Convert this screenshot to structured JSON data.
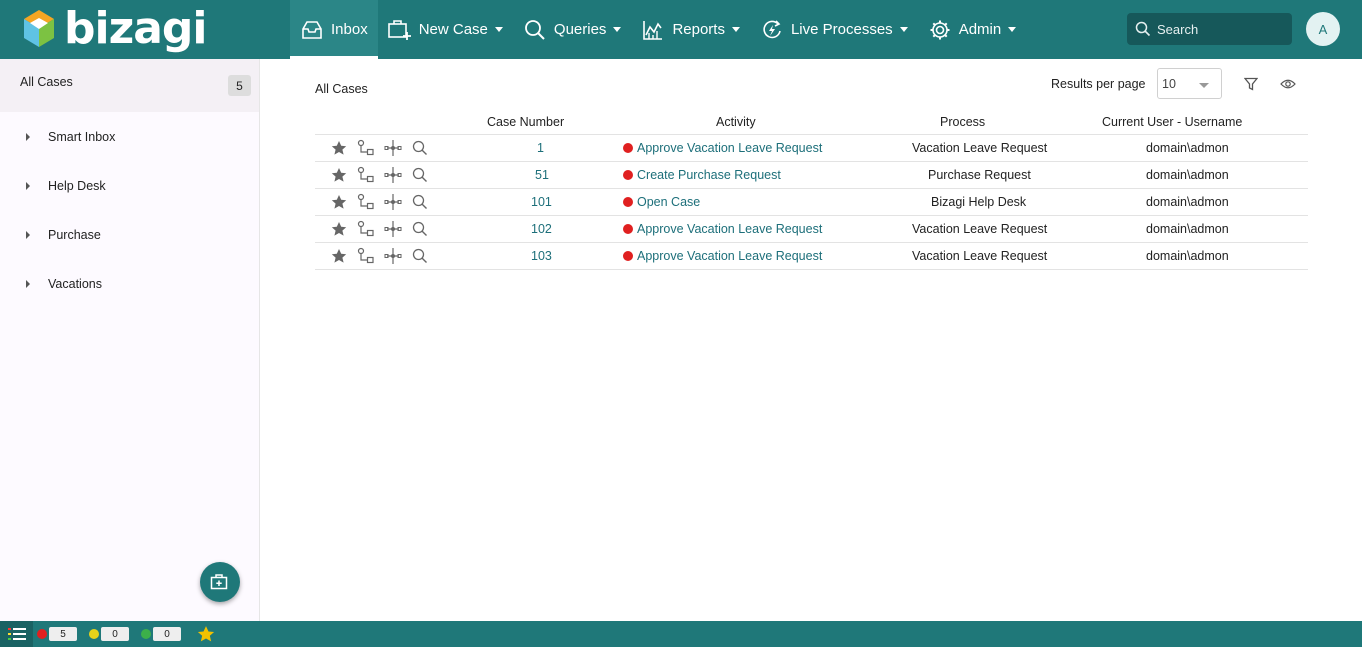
{
  "header": {
    "brand": "bizagi",
    "nav": [
      {
        "label": "Inbox",
        "icon": "inbox-icon",
        "active": true
      },
      {
        "label": "New Case",
        "icon": "new-case-icon",
        "dropdown": true
      },
      {
        "label": "Queries",
        "icon": "queries-icon",
        "dropdown": true
      },
      {
        "label": "Reports",
        "icon": "reports-icon",
        "dropdown": true
      },
      {
        "label": "Live Processes",
        "icon": "live-processes-icon",
        "dropdown": true
      },
      {
        "label": "Admin",
        "icon": "gear-icon",
        "dropdown": true
      }
    ],
    "search_placeholder": "Search",
    "avatar_initial": "A"
  },
  "sidebar": {
    "all_cases_label": "All Cases",
    "all_cases_count": "5",
    "items": [
      {
        "label": "Smart Inbox"
      },
      {
        "label": "Help Desk"
      },
      {
        "label": "Purchase"
      },
      {
        "label": "Vacations"
      }
    ]
  },
  "main": {
    "title": "All Cases",
    "results_per_page_label": "Results per page",
    "results_per_page_value": "10",
    "columns": [
      "Case Number",
      "Activity",
      "Process",
      "Current User - Username"
    ],
    "rows": [
      {
        "case_number": "1",
        "activity": "Approve Vacation Leave Request",
        "process": "Vacation Leave Request",
        "user": "domain\\admon"
      },
      {
        "case_number": "51",
        "activity": "Create Purchase Request",
        "process": "Purchase Request",
        "user": "domain\\admon"
      },
      {
        "case_number": "101",
        "activity": "Open Case",
        "process": "Bizagi Help Desk",
        "user": "domain\\admon"
      },
      {
        "case_number": "102",
        "activity": "Approve Vacation Leave Request",
        "process": "Vacation Leave Request",
        "user": "domain\\admon"
      },
      {
        "case_number": "103",
        "activity": "Approve Vacation Leave Request",
        "process": "Vacation Leave Request",
        "user": "domain\\admon"
      }
    ]
  },
  "footer": {
    "red_count": "5",
    "yellow_count": "0",
    "green_count": "0"
  },
  "colors": {
    "brand": "#1f7879",
    "overdue": "#e02020",
    "at_risk": "#e6d21a",
    "on_time": "#3cb04a",
    "favorite": "#f2c200"
  }
}
